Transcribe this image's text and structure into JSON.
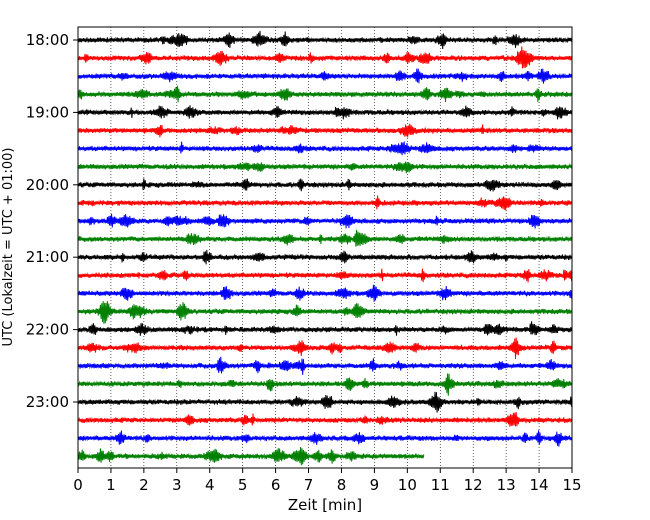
{
  "chart_data": {
    "type": "line",
    "xlabel": "Zeit  [min]",
    "ylabel": "UTC (Lokalzeit = UTC + 01:00)",
    "xlim": [
      0,
      15
    ],
    "x_ticks": [
      "0",
      "1",
      "2",
      "3",
      "4",
      "5",
      "6",
      "7",
      "8",
      "9",
      "10",
      "11",
      "12",
      "13",
      "14",
      "15"
    ],
    "y_tick_labels": [
      "18:00",
      "19:00",
      "20:00",
      "21:00",
      "22:00",
      "23:00"
    ],
    "grid": "vertical dotted",
    "trace_colors": [
      "#000000",
      "#ff0000",
      "#0000ff",
      "#008000"
    ],
    "rows": [
      {
        "start": "18:00",
        "end_min": 15
      },
      {
        "start": "18:15",
        "end_min": 15
      },
      {
        "start": "18:30",
        "end_min": 15
      },
      {
        "start": "18:45",
        "end_min": 15
      },
      {
        "start": "19:00",
        "end_min": 15
      },
      {
        "start": "19:15",
        "end_min": 15
      },
      {
        "start": "19:30",
        "end_min": 15
      },
      {
        "start": "19:45",
        "end_min": 15
      },
      {
        "start": "20:00",
        "end_min": 15
      },
      {
        "start": "20:15",
        "end_min": 15
      },
      {
        "start": "20:30",
        "end_min": 15
      },
      {
        "start": "20:45",
        "end_min": 15
      },
      {
        "start": "21:00",
        "end_min": 15
      },
      {
        "start": "21:15",
        "end_min": 15
      },
      {
        "start": "21:30",
        "end_min": 15
      },
      {
        "start": "21:45",
        "end_min": 15
      },
      {
        "start": "22:00",
        "end_min": 15
      },
      {
        "start": "22:15",
        "end_min": 15
      },
      {
        "start": "22:30",
        "end_min": 15
      },
      {
        "start": "22:45",
        "end_min": 15
      },
      {
        "start": "23:00",
        "end_min": 15
      },
      {
        "start": "23:15",
        "end_min": 15
      },
      {
        "start": "23:30",
        "end_min": 15
      },
      {
        "start": "23:45",
        "end_min": 10.5
      }
    ]
  }
}
